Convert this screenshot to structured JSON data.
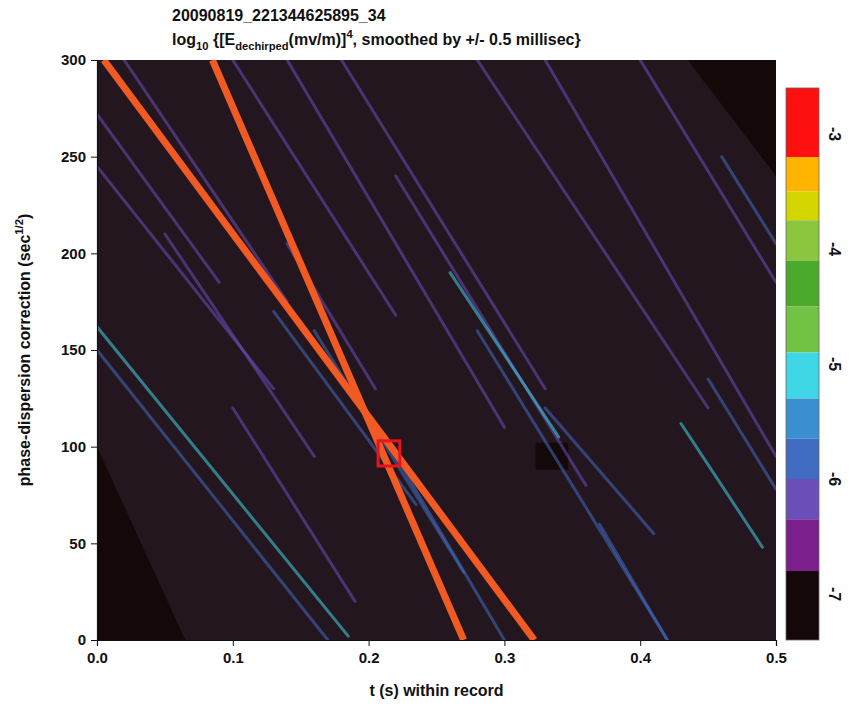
{
  "chart_data": {
    "type": "heatmap",
    "title": "20090819_221344625895_34",
    "subtitle": [
      "log",
      {
        "sub": "10"
      },
      " {[E",
      {
        "sub": "dechirped"
      },
      "(mv/m)]",
      {
        "sup": "4"
      },
      ", smoothed by +/- 0.5 millisec}"
    ],
    "x_label": "t (s) within record",
    "y_label": [
      "phase-dispersion correction (sec",
      {
        "sup": "1/2"
      },
      ")"
    ],
    "xlim": [
      0,
      0.5
    ],
    "xticks": [
      {
        "value": 0,
        "label": "0.0"
      },
      0.1,
      0.2,
      0.3,
      0.4,
      0.5
    ],
    "ylim": [
      0,
      300
    ],
    "yticks": [
      0,
      50,
      100,
      150,
      200,
      250,
      300
    ],
    "colorbar": {
      "range": [
        -7.4,
        -2.6
      ],
      "ticks": [
        -3,
        -4,
        -5,
        -6,
        -7
      ],
      "bands": [
        {
          "from": -3.2,
          "to": -2.6,
          "color": "#ff1010"
        },
        {
          "from": -3.5,
          "to": -3.2,
          "color": "#ffb400"
        },
        {
          "from": -3.75,
          "to": -3.5,
          "color": "#d4d400"
        },
        {
          "from": -4.1,
          "to": -3.75,
          "color": "#8cc63f"
        },
        {
          "from": -4.5,
          "to": -4.1,
          "color": "#4aa82a"
        },
        {
          "from": -4.9,
          "to": -4.5,
          "color": "#72c244"
        },
        {
          "from": -5.3,
          "to": -4.9,
          "color": "#3fd6e6"
        },
        {
          "from": -5.65,
          "to": -5.3,
          "color": "#3a8fd0"
        },
        {
          "from": -6.0,
          "to": -5.65,
          "color": "#3f6cc0"
        },
        {
          "from": -6.35,
          "to": -6.0,
          "color": "#6a4fb8"
        },
        {
          "from": -6.8,
          "to": -6.35,
          "color": "#7b1f8c"
        },
        {
          "from": -7.4,
          "to": -6.8,
          "color": "#140808"
        }
      ]
    },
    "empty_regions": [
      {
        "x": [
          0.435,
          0.5,
          0.5
        ],
        "y": [
          300,
          300,
          240
        ],
        "value": -7.4
      },
      {
        "x": [
          0,
          0,
          0.065
        ],
        "y": [
          0,
          100,
          0
        ],
        "value": -7.4
      },
      {
        "x": [
          0.323,
          0.347,
          0.347,
          0.323
        ],
        "y": [
          88,
          88,
          102,
          102
        ],
        "value": -7.4
      }
    ],
    "streaks": [
      {
        "x": [
          0.0,
          0.185
        ],
        "y": [
          162,
          2
        ],
        "value": -5.1
      },
      {
        "x": [
          0.0,
          0.17
        ],
        "y": [
          150,
          0
        ],
        "value": -5.8
      },
      {
        "x": [
          0.0,
          0.09
        ],
        "y": [
          272,
          185
        ],
        "value": -6.1
      },
      {
        "x": [
          0.0,
          0.13
        ],
        "y": [
          245,
          130
        ],
        "value": -6.1
      },
      {
        "x": [
          0.02,
          0.14
        ],
        "y": [
          300,
          175
        ],
        "value": -6.1
      },
      {
        "x": [
          0.13,
          0.235
        ],
        "y": [
          170,
          70
        ],
        "value": -5.8
      },
      {
        "x": [
          0.16,
          0.27
        ],
        "y": [
          160,
          35
        ],
        "value": -5.8
      },
      {
        "x": [
          0.14,
          0.205
        ],
        "y": [
          205,
          130
        ],
        "value": -6.1
      },
      {
        "x": [
          0.18,
          0.33
        ],
        "y": [
          300,
          130
        ],
        "value": -6.1
      },
      {
        "x": [
          0.22,
          0.36
        ],
        "y": [
          240,
          80
        ],
        "value": -6.1
      },
      {
        "x": [
          0.26,
          0.34
        ],
        "y": [
          190,
          105
        ],
        "value": -5.1
      },
      {
        "x": [
          0.28,
          0.42
        ],
        "y": [
          160,
          0
        ],
        "value": -5.8
      },
      {
        "x": [
          0.33,
          0.41
        ],
        "y": [
          120,
          55
        ],
        "value": -5.8
      },
      {
        "x": [
          0.33,
          0.5
        ],
        "y": [
          300,
          95
        ],
        "value": -6.1
      },
      {
        "x": [
          0.4,
          0.5
        ],
        "y": [
          300,
          185
        ],
        "value": -6.1
      },
      {
        "x": [
          0.43,
          0.49
        ],
        "y": [
          112,
          48
        ],
        "value": -5.1
      },
      {
        "x": [
          0.45,
          0.5
        ],
        "y": [
          135,
          78
        ],
        "value": -5.8
      },
      {
        "x": [
          0.28,
          0.45
        ],
        "y": [
          300,
          120
        ],
        "value": -6.1
      },
      {
        "x": [
          0.14,
          0.3
        ],
        "y": [
          300,
          110
        ],
        "value": -6.1
      },
      {
        "x": [
          0.1,
          0.22
        ],
        "y": [
          300,
          168
        ],
        "value": -6.1
      },
      {
        "x": [
          0.37,
          0.42
        ],
        "y": [
          60,
          0
        ],
        "value": -5.8
      },
      {
        "x": [
          0.22,
          0.3
        ],
        "y": [
          95,
          0
        ],
        "value": -5.8
      },
      {
        "x": [
          0.1,
          0.19
        ],
        "y": [
          120,
          20
        ],
        "value": -6.1
      },
      {
        "x": [
          0.46,
          0.5
        ],
        "y": [
          250,
          205
        ],
        "value": -5.8
      },
      {
        "x": [
          0.05,
          0.16
        ],
        "y": [
          210,
          95
        ],
        "value": -6.1
      }
    ],
    "annotations": {
      "lines": [
        {
          "x": [
            0.005,
            0.322
          ],
          "y": [
            300,
            0
          ],
          "color": "#f15a22"
        },
        {
          "x": [
            0.085,
            0.27
          ],
          "y": [
            300,
            0
          ],
          "color": "#f15a22"
        }
      ],
      "box": {
        "x": [
          0.207,
          0.223
        ],
        "y": [
          90,
          103
        ],
        "color": "#e8141c"
      }
    }
  }
}
